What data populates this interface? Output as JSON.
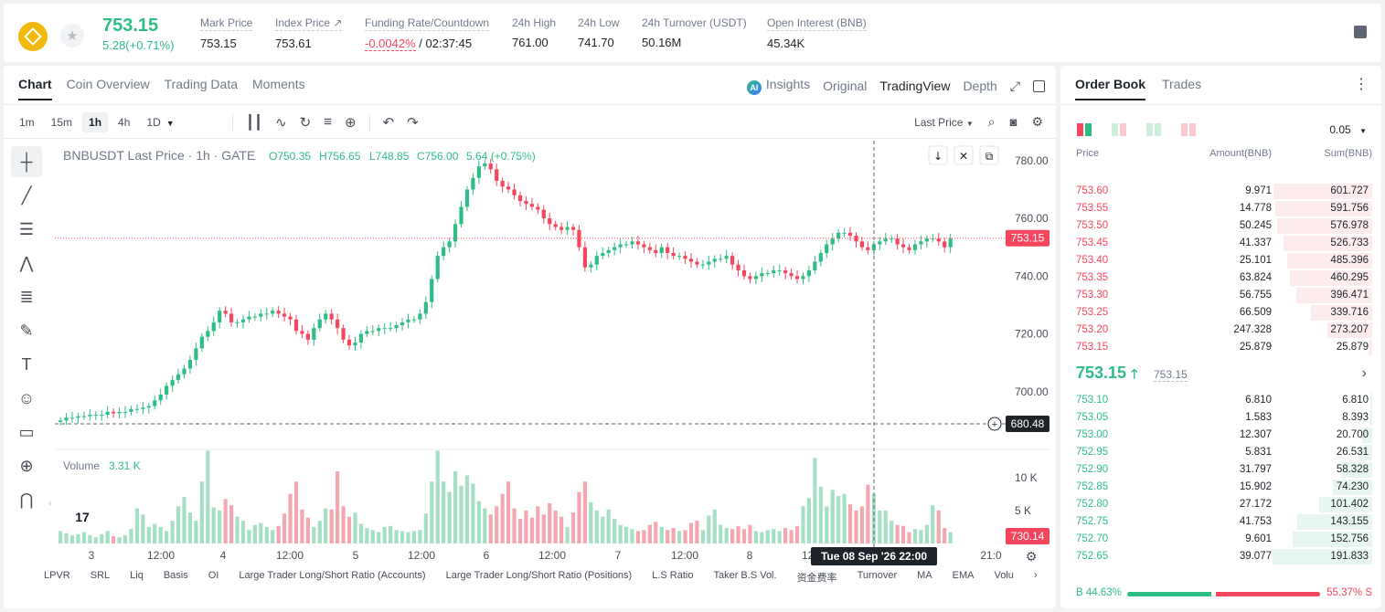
{
  "ticker": {
    "last_price": "753.15",
    "change": "5.28(+0.71%)",
    "stats": [
      {
        "label": "Mark Price",
        "value": "753.15"
      },
      {
        "label": "Index Price ↗",
        "value": "753.61"
      },
      {
        "label": "Funding Rate/Countdown",
        "value_neg": "-0.0042%",
        "value": " / 02:37:45"
      },
      {
        "label": "24h High",
        "value": "761.00"
      },
      {
        "label": "24h Low",
        "value": "741.70"
      },
      {
        "label": "24h Turnover (USDT)",
        "value": "50.16M"
      },
      {
        "label": "Open Interest (BNB)",
        "value": "45.34K"
      }
    ]
  },
  "chart_panel": {
    "tabs": [
      "Chart",
      "Coin Overview",
      "Trading Data",
      "Moments"
    ],
    "view_modes": {
      "insights": "Insights",
      "original": "Original",
      "tradingview": "TradingView",
      "depth": "Depth"
    },
    "intervals": [
      "1m",
      "15m",
      "1h",
      "4h",
      "1D"
    ],
    "active_interval": "1h",
    "price_type": "Last Price",
    "legend": {
      "symbol": "BNBUSDT Last Price · 1h · GATE",
      "o": "O750.35",
      "h": "H756.65",
      "l": "L748.85",
      "c": "C756.00",
      "chg": "5.64 (+0.75%)"
    },
    "volume_label": "Volume",
    "volume_value": "3.31 K",
    "crosshair_price": "680.48",
    "crosshair_time": "Tue 08 Sep '26   22:00",
    "current_price_tag": "753.15",
    "volume_cursor_tag": "730.14",
    "indicators": [
      "LPVR",
      "SRL",
      "Liq",
      "Basis",
      "OI",
      "Large Trader Long/Short Ratio (Accounts)",
      "Large Trader Long/Short Ratio (Positions)",
      "L.S Ratio",
      "Taker B.S Vol.",
      "资金费率",
      "Turnover",
      "MA",
      "EMA",
      "Volu"
    ]
  },
  "chart_data": {
    "type": "candlestick",
    "price_axis_ticks": [
      "780.00",
      "760.00",
      "740.00",
      "720.00",
      "700.00"
    ],
    "price_axis_values": [
      780,
      760,
      740,
      720,
      700
    ],
    "volume_axis_ticks": [
      "10 K",
      "5 K"
    ],
    "time_axis_ticks": [
      "3",
      "12:00",
      "4",
      "12:00",
      "5",
      "12:00",
      "6",
      "12:00",
      "7",
      "12:00",
      "8",
      "12:00",
      "21:0"
    ],
    "ylim": [
      680,
      785
    ],
    "closes": [
      690,
      691,
      691,
      691.5,
      691.5,
      692,
      692,
      692,
      693,
      692.5,
      693,
      693,
      694,
      694,
      694.5,
      695,
      697,
      699,
      702,
      704,
      706,
      708,
      711,
      715,
      719,
      721,
      724,
      728,
      727,
      724,
      724,
      725,
      726,
      726,
      727,
      727,
      728,
      727,
      726,
      725,
      721,
      720,
      718,
      722,
      725,
      727,
      725,
      722,
      718,
      716,
      717,
      720,
      721,
      721,
      722,
      722,
      722,
      723,
      724,
      725,
      725,
      727,
      731,
      739,
      747,
      750,
      752,
      758,
      764,
      770,
      774,
      778,
      779,
      777,
      773,
      771,
      770,
      768,
      766,
      765,
      764,
      763,
      760,
      758,
      757,
      756,
      757,
      756,
      750,
      743,
      744,
      747,
      748,
      749,
      750,
      751,
      751,
      752,
      751,
      750,
      749,
      748,
      750,
      748,
      747,
      747,
      746,
      745,
      744,
      744,
      745,
      746,
      746,
      747,
      744,
      742,
      740,
      739,
      740,
      741,
      741,
      742,
      742,
      741,
      740,
      739,
      740,
      742,
      745,
      748,
      751,
      753,
      755,
      755,
      754,
      752,
      750,
      749,
      751,
      752,
      753,
      753,
      751,
      750,
      749,
      751,
      752,
      753,
      753,
      752,
      750,
      753
    ],
    "volumes": [
      1.2,
      1.0,
      0.8,
      0.9,
      1.1,
      0.8,
      0.6,
      0.9,
      1.2,
      0.7,
      0.6,
      0.8,
      1.4,
      3.4,
      2.8,
      1.6,
      1.9,
      1.6,
      1.2,
      2.2,
      3.6,
      4.5,
      3.0,
      2.2,
      6.0,
      9.0,
      3.5,
      3.2,
      4.3,
      3.7,
      2.6,
      2.2,
      1.3,
      1.8,
      2.0,
      1.6,
      1.3,
      1.7,
      2.9,
      4.8,
      6.0,
      3.3,
      2.5,
      1.6,
      2.2,
      3.4,
      3.3,
      7.0,
      3.6,
      2.6,
      3.0,
      1.9,
      1.5,
      1.3,
      1.1,
      1.6,
      1.7,
      1.3,
      1.2,
      1.1,
      1.2,
      1.3,
      2.9,
      6.0,
      9.0,
      6.0,
      5.0,
      7.0,
      5.6,
      6.6,
      5.8,
      4.1,
      3.4,
      2.8,
      3.6,
      4.8,
      6.0,
      3.4,
      2.4,
      3.2,
      2.5,
      3.6,
      2.8,
      3.9,
      3.2,
      2.6,
      1.6,
      3.0,
      5.0,
      6.0,
      4.0,
      3.2,
      2.6,
      3.3,
      2.4,
      1.8,
      1.6,
      1.4,
      1.2,
      1.3,
      1.8,
      2.1,
      1.6,
      1.3,
      1.5,
      1.2,
      1.3,
      2.0,
      2.2,
      1.3,
      2.7,
      3.3,
      1.8,
      1.5,
      1.4,
      1.7,
      1.4,
      1.8,
      1.2,
      1.1,
      1.3,
      1.4,
      1.2,
      1.5,
      1.3,
      1.7,
      3.6,
      4.4,
      8.3,
      5.5,
      3.6,
      5.2,
      4.6,
      4.8,
      3.8,
      3.2,
      3.6,
      5.7,
      4.8,
      3.2,
      3.2,
      2.2,
      1.8,
      1.7,
      1.1,
      1.4,
      1.3,
      1.8,
      3.7,
      3.2,
      1.5,
      1.1
    ]
  },
  "order_book": {
    "tabs": [
      "Order Book",
      "Trades"
    ],
    "tick_size": "0.05",
    "headers": {
      "price": "Price",
      "amount": "Amount(BNB)",
      "sum": "Sum(BNB)"
    },
    "asks": [
      {
        "price": "753.60",
        "amount": "9.971",
        "sum": "601.727",
        "depth": 0.96
      },
      {
        "price": "753.55",
        "amount": "14.778",
        "sum": "591.756",
        "depth": 0.95
      },
      {
        "price": "753.50",
        "amount": "50.245",
        "sum": "576.978",
        "depth": 0.93
      },
      {
        "price": "753.45",
        "amount": "41.337",
        "sum": "526.733",
        "depth": 0.87
      },
      {
        "price": "753.40",
        "amount": "25.101",
        "sum": "485.396",
        "depth": 0.83
      },
      {
        "price": "753.35",
        "amount": "63.824",
        "sum": "460.295",
        "depth": 0.8
      },
      {
        "price": "753.30",
        "amount": "56.755",
        "sum": "396.471",
        "depth": 0.74
      },
      {
        "price": "753.25",
        "amount": "66.509",
        "sum": "339.716",
        "depth": 0.6
      },
      {
        "price": "753.20",
        "amount": "247.328",
        "sum": "273.207",
        "depth": 0.44
      },
      {
        "price": "753.15",
        "amount": "25.879",
        "sum": "25.879",
        "depth": 0.04
      }
    ],
    "mid_price": "753.15",
    "mark_price": "753.15",
    "bids": [
      {
        "price": "753.10",
        "amount": "6.810",
        "sum": "6.810",
        "depth": 0.02
      },
      {
        "price": "753.05",
        "amount": "1.583",
        "sum": "8.393",
        "depth": 0.03
      },
      {
        "price": "753.00",
        "amount": "12.307",
        "sum": "20.700",
        "depth": 0.1
      },
      {
        "price": "752.95",
        "amount": "5.831",
        "sum": "26.531",
        "depth": 0.13
      },
      {
        "price": "752.90",
        "amount": "31.797",
        "sum": "58.328",
        "depth": 0.3
      },
      {
        "price": "752.85",
        "amount": "15.902",
        "sum": "74.230",
        "depth": 0.38
      },
      {
        "price": "752.80",
        "amount": "27.172",
        "sum": "101.402",
        "depth": 0.52
      },
      {
        "price": "752.75",
        "amount": "41.753",
        "sum": "143.155",
        "depth": 0.73
      },
      {
        "price": "752.70",
        "amount": "9.601",
        "sum": "152.756",
        "depth": 0.78
      },
      {
        "price": "752.65",
        "amount": "39.077",
        "sum": "191.833",
        "depth": 0.98
      }
    ],
    "buy_ratio": "B 44.63%",
    "sell_ratio": "55.37% S",
    "buy_fraction": 0.4463
  },
  "colors": {
    "up": "#2ebd85",
    "down": "#f6465d",
    "accent": "#f0b90b"
  }
}
